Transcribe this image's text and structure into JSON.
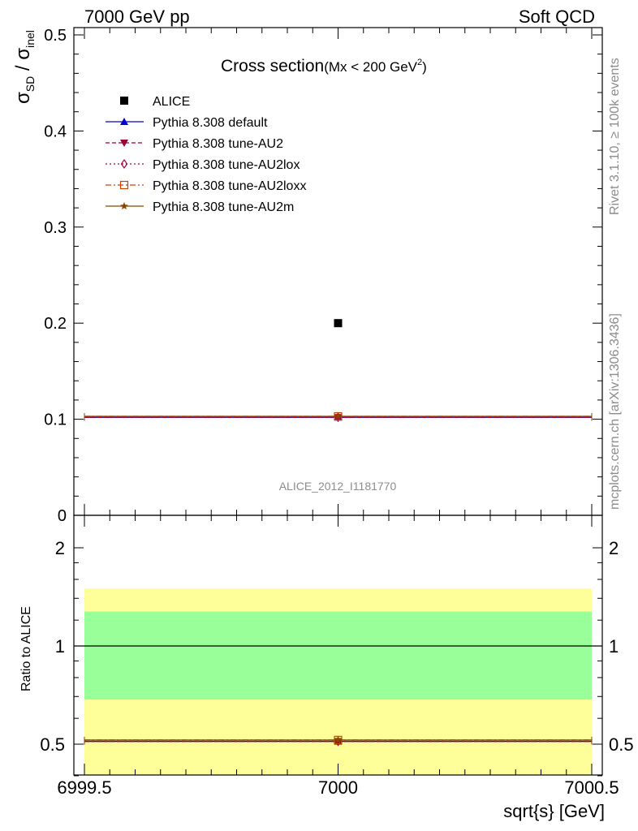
{
  "header": {
    "left": "7000 GeV pp",
    "right": "Soft QCD"
  },
  "side_labels": {
    "rivet": "Rivet 3.1.10, ≥ 100k events",
    "mcplots": "mcplots.cern.ch [arXiv:1306.3436]"
  },
  "chart_data": [
    {
      "type": "scatter",
      "title": "Cross section",
      "title_suffix": "(Mx < 200 GeV",
      "title_sup": "2",
      "title_close": ")",
      "ylabel": "σ_SD / σ_inel",
      "ylim": [
        0,
        0.5
      ],
      "xlim": [
        6999.5,
        7000.5
      ],
      "y_ticks": [
        "0.1",
        "0.2",
        "0.3",
        "0.4",
        "0.5"
      ],
      "y_zero_label": "0",
      "watermark": "ALICE_2012_I1181770",
      "legend_position": "top-left",
      "series": [
        {
          "name": "ALICE",
          "x": [
            7000
          ],
          "y": [
            0.2
          ],
          "color": "#000000",
          "marker": "square",
          "style": "data"
        },
        {
          "name": "Pythia 8.308 default",
          "x": [
            7000
          ],
          "y": [
            0.102
          ],
          "color": "#0000cc",
          "marker": "triangle-up",
          "style": "solid"
        },
        {
          "name": "Pythia 8.308 tune-AU2",
          "x": [
            7000
          ],
          "y": [
            0.102
          ],
          "color": "#990033",
          "marker": "triangle-down",
          "style": "dashed"
        },
        {
          "name": "Pythia 8.308 tune-AU2lox",
          "x": [
            7000
          ],
          "y": [
            0.102
          ],
          "color": "#aa0044",
          "marker": "diamond-open",
          "style": "dotted"
        },
        {
          "name": "Pythia 8.308 tune-AU2loxx",
          "x": [
            7000
          ],
          "y": [
            0.103
          ],
          "color": "#cc4400",
          "marker": "square-open",
          "style": "dashdot"
        },
        {
          "name": "Pythia 8.308 tune-AU2m",
          "x": [
            7000
          ],
          "y": [
            0.103
          ],
          "color": "#884400",
          "marker": "star",
          "style": "solid"
        }
      ]
    },
    {
      "type": "scatter",
      "ylabel": "Ratio to ALICE",
      "xlabel": "sqrt{s} [GeV]",
      "ylim": [
        0.35,
        2.3
      ],
      "xlim": [
        6999.5,
        7000.5
      ],
      "y_ticks": [
        "0.5",
        "1",
        "2"
      ],
      "x_ticks": [
        "6999.5",
        "7000",
        "7000.5"
      ],
      "bands": [
        {
          "name": "2-sigma",
          "low": 0.35,
          "high": 1.5,
          "color": "#ffff99"
        },
        {
          "name": "1-sigma",
          "low": 0.685,
          "high": 1.275,
          "color": "#99ff99"
        }
      ],
      "reference": 1,
      "series": [
        {
          "name": "Pythia 8.308 default",
          "x": [
            7000
          ],
          "y": [
            0.51
          ],
          "color": "#0000cc"
        },
        {
          "name": "Pythia 8.308 tune-AU2",
          "x": [
            7000
          ],
          "y": [
            0.51
          ],
          "color": "#990033"
        },
        {
          "name": "Pythia 8.308 tune-AU2lox",
          "x": [
            7000
          ],
          "y": [
            0.51
          ],
          "color": "#aa0044"
        },
        {
          "name": "Pythia 8.308 tune-AU2loxx",
          "x": [
            7000
          ],
          "y": [
            0.515
          ],
          "color": "#cc4400"
        },
        {
          "name": "Pythia 8.308 tune-AU2m",
          "x": [
            7000
          ],
          "y": [
            0.515
          ],
          "color": "#884400"
        }
      ]
    }
  ]
}
